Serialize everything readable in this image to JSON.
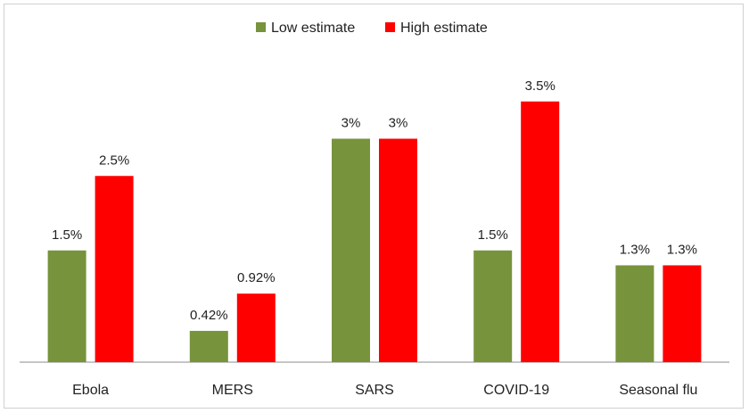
{
  "chart_data": {
    "type": "bar",
    "title": "",
    "xlabel": "",
    "ylabel": "",
    "categories": [
      "Ebola",
      "MERS",
      "SARS",
      "COVID-19",
      "Seasonal flu"
    ],
    "series": [
      {
        "name": "Low estimate",
        "color": "#77933C",
        "values": [
          1.5,
          0.42,
          3,
          1.5,
          1.3
        ],
        "labels": [
          "1.5%",
          "0.42%",
          "3%",
          "1.5%",
          "1.3%"
        ]
      },
      {
        "name": "High estimate",
        "color": "#FF0000",
        "values": [
          2.5,
          0.92,
          3,
          3.5,
          1.3
        ],
        "labels": [
          "2.5%",
          "0.92%",
          "3%",
          "3.5%",
          "1.3%"
        ]
      }
    ],
    "ylim": [
      0,
      4.1
    ],
    "grid": false,
    "legend": "top-center"
  }
}
